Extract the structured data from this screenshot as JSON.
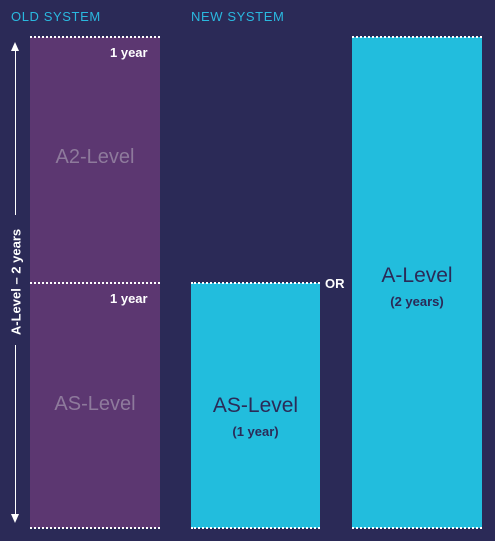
{
  "headers": {
    "old": "OLD SYSTEM",
    "new": "NEW SYSTEM"
  },
  "old_system": {
    "top_duration": "1 year",
    "top_label": "A2-Level",
    "bottom_duration": "1 year",
    "bottom_label": "AS-Level",
    "span_label": "A-Level – 2 years"
  },
  "new_system": {
    "as_label": "AS-Level",
    "as_duration": "(1 year)",
    "or_label": "OR",
    "a_label": "A-Level",
    "a_duration": "(2 years)"
  },
  "colors": {
    "background": "#2b2a57",
    "old_block": "#5c3771",
    "new_block": "#22bddd",
    "header": "#2ab8df"
  }
}
